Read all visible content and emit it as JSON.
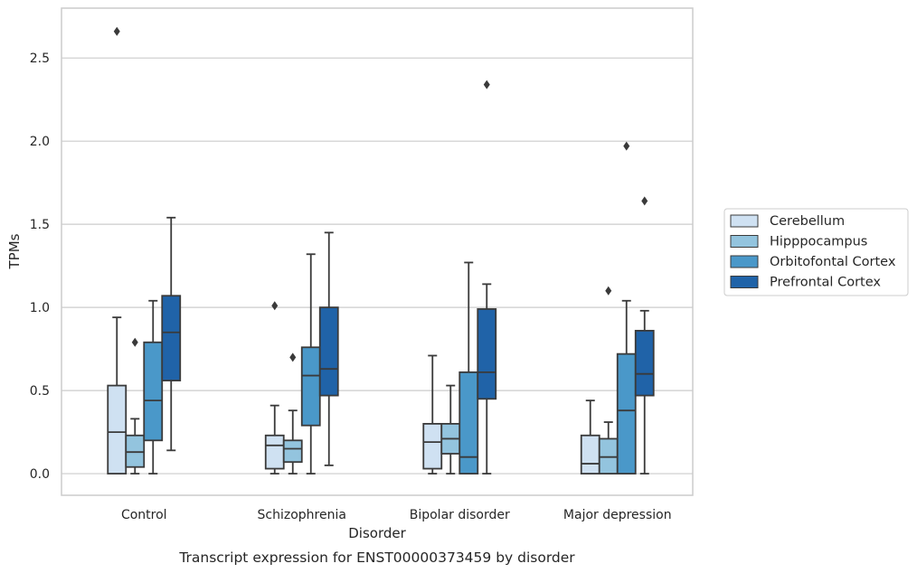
{
  "chart_data": {
    "type": "box",
    "caption": "Transcript expression for ENST00000373459 by disorder",
    "xlabel": "Disorder",
    "ylabel": "TPMs",
    "ylim": [
      -0.13,
      2.8
    ],
    "yticks": [
      "0.0",
      "0.5",
      "1.0",
      "1.5",
      "2.0",
      "2.5"
    ],
    "ytick_values": [
      0,
      0.5,
      1.0,
      1.5,
      2.0,
      2.5
    ],
    "grid": "horizontal",
    "legend_position": "right",
    "categories": [
      "Control",
      "Schizophrenia",
      "Bipolar disorder",
      "Major depression"
    ],
    "series": [
      {
        "name": "Cerebellum",
        "color": "#cfe1f2",
        "boxes": [
          {
            "whislo": 0.0,
            "q1": 0.0,
            "med": 0.25,
            "q3": 0.53,
            "whishi": 0.94,
            "fliers": [
              2.66
            ]
          },
          {
            "whislo": 0.0,
            "q1": 0.03,
            "med": 0.17,
            "q3": 0.23,
            "whishi": 0.41,
            "fliers": [
              1.01
            ]
          },
          {
            "whislo": 0.0,
            "q1": 0.03,
            "med": 0.19,
            "q3": 0.3,
            "whishi": 0.71,
            "fliers": []
          },
          {
            "whislo": 0.0,
            "q1": 0.0,
            "med": 0.06,
            "q3": 0.23,
            "whishi": 0.44,
            "fliers": []
          }
        ]
      },
      {
        "name": "Hipppocampus",
        "color": "#93c4de",
        "boxes": [
          {
            "whislo": 0.0,
            "q1": 0.04,
            "med": 0.13,
            "q3": 0.23,
            "whishi": 0.33,
            "fliers": [
              0.79
            ]
          },
          {
            "whislo": 0.0,
            "q1": 0.07,
            "med": 0.15,
            "q3": 0.2,
            "whishi": 0.38,
            "fliers": [
              0.7
            ]
          },
          {
            "whislo": 0.0,
            "q1": 0.12,
            "med": 0.21,
            "q3": 0.3,
            "whishi": 0.53,
            "fliers": []
          },
          {
            "whislo": 0.0,
            "q1": 0.0,
            "med": 0.1,
            "q3": 0.21,
            "whishi": 0.31,
            "fliers": [
              1.1
            ]
          }
        ]
      },
      {
        "name": "Orbitofontal Cortex",
        "color": "#4a98c9",
        "boxes": [
          {
            "whislo": 0.0,
            "q1": 0.2,
            "med": 0.44,
            "q3": 0.79,
            "whishi": 1.04,
            "fliers": []
          },
          {
            "whislo": 0.0,
            "q1": 0.29,
            "med": 0.59,
            "q3": 0.76,
            "whishi": 1.32,
            "fliers": []
          },
          {
            "whislo": 0.0,
            "q1": 0.0,
            "med": 0.1,
            "q3": 0.61,
            "whishi": 1.27,
            "fliers": []
          },
          {
            "whislo": 0.0,
            "q1": 0.0,
            "med": 0.38,
            "q3": 0.72,
            "whishi": 1.04,
            "fliers": [
              1.97
            ]
          }
        ]
      },
      {
        "name": "Prefrontal Cortex",
        "color": "#2063a8",
        "boxes": [
          {
            "whislo": 0.14,
            "q1": 0.56,
            "med": 0.85,
            "q3": 1.07,
            "whishi": 1.54,
            "fliers": []
          },
          {
            "whislo": 0.05,
            "q1": 0.47,
            "med": 0.63,
            "q3": 1.0,
            "whishi": 1.45,
            "fliers": []
          },
          {
            "whislo": 0.0,
            "q1": 0.45,
            "med": 0.61,
            "q3": 0.99,
            "whishi": 1.14,
            "fliers": [
              2.34
            ]
          },
          {
            "whislo": 0.0,
            "q1": 0.47,
            "med": 0.6,
            "q3": 0.86,
            "whishi": 0.98,
            "fliers": [
              1.64
            ]
          }
        ]
      }
    ]
  }
}
